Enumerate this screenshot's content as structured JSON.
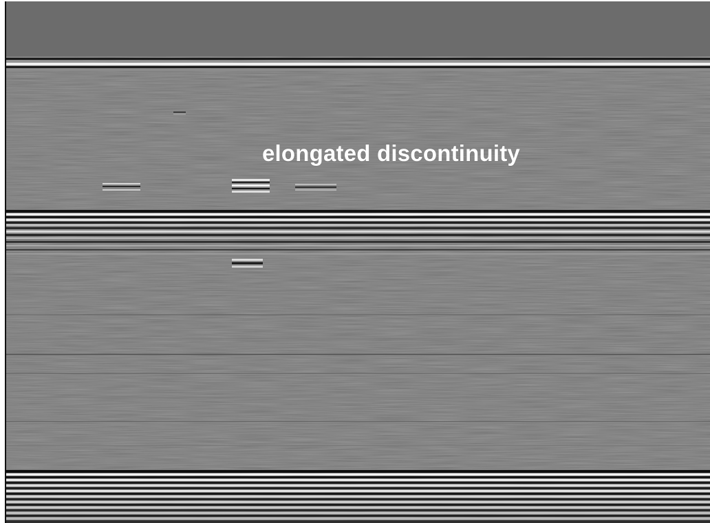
{
  "image": {
    "annotation_label": "elongated discontinuity"
  },
  "colors": {
    "background_gray": "#6e6e6e",
    "bright_band": "#f2f2f2",
    "dark_band": "#0e0e0e",
    "label": "#ffffff"
  }
}
